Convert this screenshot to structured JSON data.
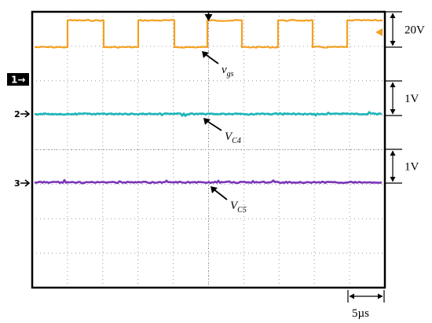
{
  "chart_data": {
    "type": "line",
    "time_scale_label": "5µs",
    "divisions": {
      "x": 10,
      "y": 8
    },
    "grid": true,
    "series": [
      {
        "channel": "1",
        "color": "#f5a020",
        "scale_label": "20V",
        "kind": "square",
        "annotation": {
          "base": "v",
          "sub": "gs"
        }
      },
      {
        "channel": "2",
        "color": "#1ab5b8",
        "scale_label": "1V",
        "kind": "dc",
        "annotation": {
          "base": "V",
          "sub": "C4"
        }
      },
      {
        "channel": "3",
        "color": "#7a35b8",
        "scale_label": "1V",
        "kind": "dc",
        "annotation": {
          "base": "V",
          "sub": "C5"
        }
      }
    ]
  }
}
